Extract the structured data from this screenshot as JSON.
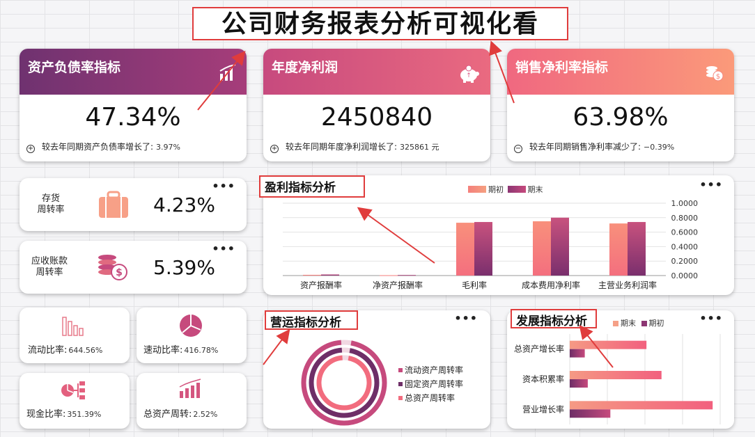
{
  "title": "公司财务报表分析可视化看",
  "colors": {
    "start": "#f4807c",
    "end": "#8c3673",
    "dark": "#6e2e67"
  },
  "kpis": [
    {
      "label": "资产负债率指标",
      "value": "47.34%",
      "sign": "+",
      "note": "较去年同期资产负债率增长了:",
      "note_value": "3.97%",
      "icon": "bar-chart-icon"
    },
    {
      "label": "年度净利润",
      "value": "2450840",
      "sign": "+",
      "note": "较去年同期年度净利润增长了:",
      "note_value": "325861 元",
      "icon": "piggy-bank-icon"
    },
    {
      "label": "销售净利率指标",
      "value": "63.98%",
      "sign": "−",
      "note": "较去年同期销售净利率减少了:",
      "note_value": "−0.39%",
      "icon": "coins-icon"
    }
  ],
  "turnover": [
    {
      "label_line1": "存货",
      "label_line2": "周转率",
      "value": "4.23%",
      "icon": "suitcase-icon"
    },
    {
      "label_line1": "应收账款",
      "label_line2": "周转率",
      "value": "5.39%",
      "icon": "money-stack-icon"
    }
  ],
  "ratios": [
    {
      "label": "流动比率:",
      "value": "644.56%",
      "icon": "bars-icon"
    },
    {
      "label": "速动比率:",
      "value": "416.78%",
      "icon": "pie-icon"
    },
    {
      "label": "现金比率:",
      "value": "351.39%",
      "icon": "flow-icon"
    },
    {
      "label": "总资产周转:",
      "value": "2.52%",
      "icon": "growth-icon"
    }
  ],
  "menu_dots": "•••",
  "profit": {
    "title": "盈利指标分析",
    "chart_data": {
      "type": "bar",
      "categories": [
        "资产报酬率",
        "净资产报酬率",
        "毛利率",
        "成本费用净利率",
        "主营业务利润率"
      ],
      "series": [
        {
          "name": "期初",
          "values": [
            0.01,
            0.005,
            0.73,
            0.75,
            0.72
          ]
        },
        {
          "name": "期末",
          "values": [
            0.015,
            0.008,
            0.74,
            0.8,
            0.74
          ]
        }
      ],
      "ylim": [
        0,
        1
      ],
      "yticks": [
        "1.0000",
        "0.8000",
        "0.6000",
        "0.4000",
        "0.2000",
        "0.0000"
      ],
      "legend_position": "top"
    }
  },
  "operation": {
    "title": "营运指标分析",
    "chart_data": {
      "type": "pie",
      "categories": [
        "流动资产周转率",
        "固定资产周转率",
        "总资产周转率"
      ],
      "values": [
        1,
        1,
        1
      ]
    }
  },
  "growth": {
    "title": "发展指标分析",
    "chart_data": {
      "type": "bar",
      "orientation": "horizontal",
      "categories": [
        "总资产增长率",
        "资本积累率",
        "营业增长率"
      ],
      "series": [
        {
          "name": "期末",
          "values": [
            0.51,
            0.61,
            0.95
          ]
        },
        {
          "name": "期初",
          "values": [
            0.1,
            0.12,
            0.27
          ]
        }
      ],
      "legend_position": "top"
    }
  }
}
